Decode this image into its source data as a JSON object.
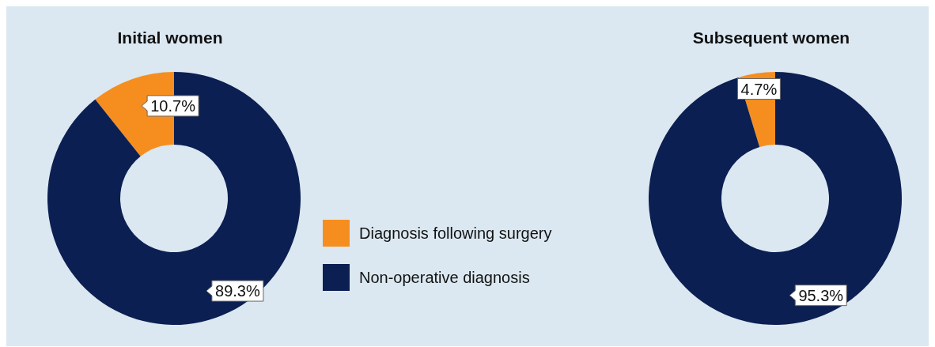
{
  "chart_data": {
    "type": "donut",
    "categories": [
      "Diagnosis following surgery",
      "Non-operative diagnosis"
    ],
    "colors": [
      "#f68e1f",
      "#0b1f52"
    ],
    "legend": "bottom",
    "series": [
      {
        "name": "Initial women",
        "values": [
          10.7,
          89.3
        ],
        "value_labels": [
          "10.7%",
          "89.3%"
        ]
      },
      {
        "name": "Subsequent women",
        "values": [
          4.7,
          95.3
        ],
        "value_labels": [
          "4.7%",
          "95.3%"
        ]
      }
    ]
  }
}
